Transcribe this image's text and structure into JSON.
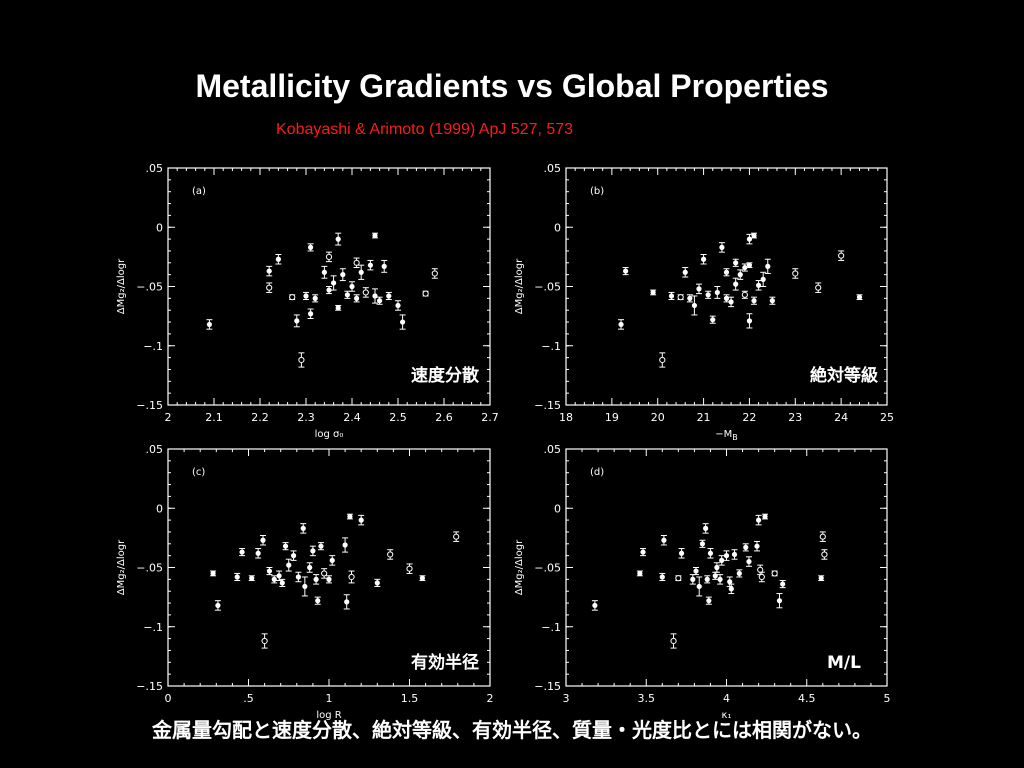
{
  "title": "Metallicity Gradients vs Global Properties",
  "subtitle": "Kobayashi & Arimoto (1999) ApJ 527, 573",
  "caption": "金属量勾配と速度分散、絶対等級、有効半径、質量・光度比とには相関がない。",
  "chart_data": [
    {
      "type": "scatter",
      "panel": "(a)",
      "annotation": "速度分散",
      "xlabel": "log σ₀",
      "ylabel": "ΔMg₂/Δlogr",
      "xlim": [
        2,
        2.7
      ],
      "ylim": [
        -0.15,
        0.05
      ],
      "xticks": [
        "2",
        "2.1",
        "2.2",
        "2.3",
        "2.4",
        "2.5",
        "2.6",
        "2.7"
      ],
      "yticks": [
        ".05",
        "0",
        "−.05",
        "−.1",
        "−.15"
      ],
      "points": [
        {
          "x": 2.09,
          "y": -0.082,
          "err": 0.004,
          "open": false
        },
        {
          "x": 2.22,
          "y": -0.037,
          "err": 0.004,
          "open": false
        },
        {
          "x": 2.22,
          "y": -0.051,
          "err": 0.004,
          "open": true
        },
        {
          "x": 2.24,
          "y": -0.027,
          "err": 0.004,
          "open": false
        },
        {
          "x": 2.27,
          "y": -0.059,
          "err": 0.002,
          "open": true
        },
        {
          "x": 2.28,
          "y": -0.079,
          "err": 0.005,
          "open": false
        },
        {
          "x": 2.29,
          "y": -0.112,
          "err": 0.006,
          "open": true
        },
        {
          "x": 2.3,
          "y": -0.058,
          "err": 0.003,
          "open": false
        },
        {
          "x": 2.31,
          "y": -0.073,
          "err": 0.004,
          "open": false
        },
        {
          "x": 2.31,
          "y": -0.017,
          "err": 0.003,
          "open": false
        },
        {
          "x": 2.32,
          "y": -0.06,
          "err": 0.003,
          "open": false
        },
        {
          "x": 2.34,
          "y": -0.038,
          "err": 0.005,
          "open": false
        },
        {
          "x": 2.35,
          "y": -0.025,
          "err": 0.004,
          "open": true
        },
        {
          "x": 2.35,
          "y": -0.053,
          "err": 0.003,
          "open": false
        },
        {
          "x": 2.36,
          "y": -0.047,
          "err": 0.006,
          "open": false
        },
        {
          "x": 2.37,
          "y": -0.068,
          "err": 0.002,
          "open": false
        },
        {
          "x": 2.37,
          "y": -0.01,
          "err": 0.005,
          "open": false
        },
        {
          "x": 2.38,
          "y": -0.04,
          "err": 0.005,
          "open": false
        },
        {
          "x": 2.39,
          "y": -0.057,
          "err": 0.003,
          "open": false
        },
        {
          "x": 2.4,
          "y": -0.05,
          "err": 0.004,
          "open": false
        },
        {
          "x": 2.41,
          "y": -0.03,
          "err": 0.004,
          "open": true
        },
        {
          "x": 2.41,
          "y": -0.06,
          "err": 0.003,
          "open": false
        },
        {
          "x": 2.42,
          "y": -0.038,
          "err": 0.006,
          "open": false
        },
        {
          "x": 2.43,
          "y": -0.055,
          "err": 0.004,
          "open": true
        },
        {
          "x": 2.44,
          "y": -0.032,
          "err": 0.004,
          "open": false
        },
        {
          "x": 2.45,
          "y": -0.007,
          "err": 0.002,
          "open": false
        },
        {
          "x": 2.45,
          "y": -0.058,
          "err": 0.006,
          "open": false
        },
        {
          "x": 2.46,
          "y": -0.062,
          "err": 0.003,
          "open": false
        },
        {
          "x": 2.47,
          "y": -0.033,
          "err": 0.005,
          "open": false
        },
        {
          "x": 2.48,
          "y": -0.058,
          "err": 0.003,
          "open": false
        },
        {
          "x": 2.5,
          "y": -0.066,
          "err": 0.004,
          "open": false
        },
        {
          "x": 2.51,
          "y": -0.08,
          "err": 0.006,
          "open": false
        },
        {
          "x": 2.56,
          "y": -0.056,
          "err": 0.002,
          "open": true
        },
        {
          "x": 2.58,
          "y": -0.039,
          "err": 0.004,
          "open": true
        }
      ]
    },
    {
      "type": "scatter",
      "panel": "(b)",
      "annotation": "絶対等級",
      "xlabel": "−M_B",
      "ylabel": "ΔMg₂/Δlogr",
      "xlim": [
        18,
        25
      ],
      "ylim": [
        -0.15,
        0.05
      ],
      "xticks": [
        "18",
        "19",
        "20",
        "21",
        "22",
        "23",
        "24",
        "25"
      ],
      "yticks": [
        ".05",
        "0",
        "−.05",
        "−.1",
        "−.15"
      ],
      "points": [
        {
          "x": 19.2,
          "y": -0.082,
          "err": 0.004,
          "open": false
        },
        {
          "x": 19.3,
          "y": -0.037,
          "err": 0.003,
          "open": false
        },
        {
          "x": 19.9,
          "y": -0.055,
          "err": 0.002,
          "open": false
        },
        {
          "x": 20.1,
          "y": -0.112,
          "err": 0.006,
          "open": true
        },
        {
          "x": 20.3,
          "y": -0.058,
          "err": 0.003,
          "open": false
        },
        {
          "x": 20.5,
          "y": -0.059,
          "err": 0.002,
          "open": true
        },
        {
          "x": 20.6,
          "y": -0.038,
          "err": 0.004,
          "open": false
        },
        {
          "x": 20.7,
          "y": -0.06,
          "err": 0.003,
          "open": false
        },
        {
          "x": 20.8,
          "y": -0.066,
          "err": 0.008,
          "open": false
        },
        {
          "x": 20.9,
          "y": -0.052,
          "err": 0.004,
          "open": false
        },
        {
          "x": 21.0,
          "y": -0.027,
          "err": 0.004,
          "open": false
        },
        {
          "x": 21.1,
          "y": -0.057,
          "err": 0.003,
          "open": false
        },
        {
          "x": 21.2,
          "y": -0.078,
          "err": 0.003,
          "open": false
        },
        {
          "x": 21.3,
          "y": -0.055,
          "err": 0.005,
          "open": false
        },
        {
          "x": 21.4,
          "y": -0.017,
          "err": 0.004,
          "open": false
        },
        {
          "x": 21.5,
          "y": -0.038,
          "err": 0.003,
          "open": false
        },
        {
          "x": 21.5,
          "y": -0.06,
          "err": 0.003,
          "open": false
        },
        {
          "x": 21.6,
          "y": -0.063,
          "err": 0.004,
          "open": false
        },
        {
          "x": 21.7,
          "y": -0.048,
          "err": 0.005,
          "open": false
        },
        {
          "x": 21.7,
          "y": -0.03,
          "err": 0.003,
          "open": false
        },
        {
          "x": 21.8,
          "y": -0.04,
          "err": 0.004,
          "open": false
        },
        {
          "x": 21.9,
          "y": -0.057,
          "err": 0.003,
          "open": true
        },
        {
          "x": 21.9,
          "y": -0.034,
          "err": 0.003,
          "open": false
        },
        {
          "x": 22.0,
          "y": -0.032,
          "err": 0.002,
          "open": false
        },
        {
          "x": 22.0,
          "y": -0.01,
          "err": 0.004,
          "open": false
        },
        {
          "x": 22.0,
          "y": -0.079,
          "err": 0.006,
          "open": false
        },
        {
          "x": 22.1,
          "y": -0.062,
          "err": 0.003,
          "open": false
        },
        {
          "x": 22.1,
          "y": -0.007,
          "err": 0.002,
          "open": false
        },
        {
          "x": 22.2,
          "y": -0.049,
          "err": 0.004,
          "open": false
        },
        {
          "x": 22.3,
          "y": -0.044,
          "err": 0.006,
          "open": false
        },
        {
          "x": 22.4,
          "y": -0.033,
          "err": 0.006,
          "open": false
        },
        {
          "x": 22.5,
          "y": -0.062,
          "err": 0.003,
          "open": false
        },
        {
          "x": 23.0,
          "y": -0.039,
          "err": 0.004,
          "open": true
        },
        {
          "x": 23.5,
          "y": -0.051,
          "err": 0.004,
          "open": true
        },
        {
          "x": 24.0,
          "y": -0.024,
          "err": 0.004,
          "open": true
        },
        {
          "x": 24.4,
          "y": -0.059,
          "err": 0.002,
          "open": false
        }
      ]
    },
    {
      "type": "scatter",
      "panel": "(c)",
      "annotation": "有効半径",
      "xlabel": "log R",
      "ylabel": "ΔMg₂/Δlogr",
      "xlim": [
        0,
        2
      ],
      "ylim": [
        -0.15,
        0.05
      ],
      "xticks": [
        "0",
        ".5",
        "1",
        "1.5",
        "2"
      ],
      "yticks": [
        ".05",
        "0",
        "−.05",
        "−.1",
        "−.15"
      ],
      "points": [
        {
          "x": 0.28,
          "y": -0.055,
          "err": 0.002,
          "open": false
        },
        {
          "x": 0.31,
          "y": -0.082,
          "err": 0.004,
          "open": false
        },
        {
          "x": 0.43,
          "y": -0.058,
          "err": 0.003,
          "open": false
        },
        {
          "x": 0.46,
          "y": -0.037,
          "err": 0.003,
          "open": false
        },
        {
          "x": 0.52,
          "y": -0.059,
          "err": 0.002,
          "open": false
        },
        {
          "x": 0.56,
          "y": -0.038,
          "err": 0.004,
          "open": false
        },
        {
          "x": 0.59,
          "y": -0.027,
          "err": 0.004,
          "open": false
        },
        {
          "x": 0.6,
          "y": -0.112,
          "err": 0.006,
          "open": true
        },
        {
          "x": 0.63,
          "y": -0.053,
          "err": 0.003,
          "open": false
        },
        {
          "x": 0.66,
          "y": -0.06,
          "err": 0.003,
          "open": false
        },
        {
          "x": 0.69,
          "y": -0.057,
          "err": 0.004,
          "open": false
        },
        {
          "x": 0.71,
          "y": -0.063,
          "err": 0.003,
          "open": false
        },
        {
          "x": 0.73,
          "y": -0.032,
          "err": 0.003,
          "open": false
        },
        {
          "x": 0.75,
          "y": -0.048,
          "err": 0.005,
          "open": false
        },
        {
          "x": 0.78,
          "y": -0.04,
          "err": 0.004,
          "open": false
        },
        {
          "x": 0.81,
          "y": -0.058,
          "err": 0.004,
          "open": false
        },
        {
          "x": 0.84,
          "y": -0.017,
          "err": 0.004,
          "open": false
        },
        {
          "x": 0.85,
          "y": -0.066,
          "err": 0.008,
          "open": false
        },
        {
          "x": 0.88,
          "y": -0.05,
          "err": 0.004,
          "open": false
        },
        {
          "x": 0.9,
          "y": -0.036,
          "err": 0.004,
          "open": false
        },
        {
          "x": 0.92,
          "y": -0.06,
          "err": 0.004,
          "open": false
        },
        {
          "x": 0.93,
          "y": -0.078,
          "err": 0.003,
          "open": false
        },
        {
          "x": 0.95,
          "y": -0.032,
          "err": 0.003,
          "open": false
        },
        {
          "x": 0.97,
          "y": -0.055,
          "err": 0.004,
          "open": true
        },
        {
          "x": 1.0,
          "y": -0.06,
          "err": 0.003,
          "open": false
        },
        {
          "x": 1.02,
          "y": -0.044,
          "err": 0.004,
          "open": false
        },
        {
          "x": 1.1,
          "y": -0.031,
          "err": 0.006,
          "open": false
        },
        {
          "x": 1.11,
          "y": -0.079,
          "err": 0.006,
          "open": false
        },
        {
          "x": 1.13,
          "y": -0.007,
          "err": 0.002,
          "open": false
        },
        {
          "x": 1.14,
          "y": -0.058,
          "err": 0.005,
          "open": true
        },
        {
          "x": 1.2,
          "y": -0.01,
          "err": 0.004,
          "open": false
        },
        {
          "x": 1.3,
          "y": -0.063,
          "err": 0.003,
          "open": false
        },
        {
          "x": 1.38,
          "y": -0.039,
          "err": 0.004,
          "open": true
        },
        {
          "x": 1.5,
          "y": -0.051,
          "err": 0.004,
          "open": true
        },
        {
          "x": 1.58,
          "y": -0.059,
          "err": 0.002,
          "open": false
        },
        {
          "x": 1.79,
          "y": -0.024,
          "err": 0.004,
          "open": true
        }
      ]
    },
    {
      "type": "scatter",
      "panel": "(d)",
      "annotation": "M/L",
      "xlabel": "κ₁",
      "ylabel": "ΔMg₂/Δlogr",
      "xlim": [
        3,
        5
      ],
      "ylim": [
        -0.15,
        0.05
      ],
      "xticks": [
        "3",
        "3.5",
        "4",
        "4.5",
        "5"
      ],
      "yticks": [
        ".05",
        "0",
        "−.05",
        "−.1",
        "−.15"
      ],
      "points": [
        {
          "x": 3.18,
          "y": -0.082,
          "err": 0.004,
          "open": false
        },
        {
          "x": 3.46,
          "y": -0.055,
          "err": 0.002,
          "open": false
        },
        {
          "x": 3.48,
          "y": -0.037,
          "err": 0.003,
          "open": false
        },
        {
          "x": 3.6,
          "y": -0.058,
          "err": 0.003,
          "open": false
        },
        {
          "x": 3.61,
          "y": -0.027,
          "err": 0.004,
          "open": false
        },
        {
          "x": 3.67,
          "y": -0.112,
          "err": 0.006,
          "open": true
        },
        {
          "x": 3.7,
          "y": -0.059,
          "err": 0.002,
          "open": true
        },
        {
          "x": 3.72,
          "y": -0.038,
          "err": 0.004,
          "open": false
        },
        {
          "x": 3.79,
          "y": -0.06,
          "err": 0.004,
          "open": false
        },
        {
          "x": 3.81,
          "y": -0.053,
          "err": 0.003,
          "open": false
        },
        {
          "x": 3.83,
          "y": -0.066,
          "err": 0.008,
          "open": false
        },
        {
          "x": 3.85,
          "y": -0.03,
          "err": 0.003,
          "open": false
        },
        {
          "x": 3.87,
          "y": -0.017,
          "err": 0.004,
          "open": false
        },
        {
          "x": 3.88,
          "y": -0.06,
          "err": 0.003,
          "open": false
        },
        {
          "x": 3.89,
          "y": -0.078,
          "err": 0.003,
          "open": false
        },
        {
          "x": 3.9,
          "y": -0.038,
          "err": 0.004,
          "open": false
        },
        {
          "x": 3.93,
          "y": -0.057,
          "err": 0.003,
          "open": false
        },
        {
          "x": 3.94,
          "y": -0.05,
          "err": 0.004,
          "open": false
        },
        {
          "x": 3.96,
          "y": -0.06,
          "err": 0.004,
          "open": false
        },
        {
          "x": 3.97,
          "y": -0.044,
          "err": 0.004,
          "open": false
        },
        {
          "x": 4.0,
          "y": -0.04,
          "err": 0.004,
          "open": false
        },
        {
          "x": 4.02,
          "y": -0.062,
          "err": 0.004,
          "open": false
        },
        {
          "x": 4.03,
          "y": -0.068,
          "err": 0.004,
          "open": false
        },
        {
          "x": 4.05,
          "y": -0.039,
          "err": 0.004,
          "open": false
        },
        {
          "x": 4.08,
          "y": -0.055,
          "err": 0.003,
          "open": false
        },
        {
          "x": 4.12,
          "y": -0.033,
          "err": 0.003,
          "open": false
        },
        {
          "x": 4.14,
          "y": -0.045,
          "err": 0.004,
          "open": false
        },
        {
          "x": 4.19,
          "y": -0.032,
          "err": 0.004,
          "open": false
        },
        {
          "x": 4.2,
          "y": -0.01,
          "err": 0.004,
          "open": false
        },
        {
          "x": 4.21,
          "y": -0.052,
          "err": 0.004,
          "open": true
        },
        {
          "x": 4.22,
          "y": -0.058,
          "err": 0.004,
          "open": true
        },
        {
          "x": 4.24,
          "y": -0.007,
          "err": 0.002,
          "open": false
        },
        {
          "x": 4.3,
          "y": -0.055,
          "err": 0.002,
          "open": true
        },
        {
          "x": 4.33,
          "y": -0.078,
          "err": 0.006,
          "open": false
        },
        {
          "x": 4.35,
          "y": -0.064,
          "err": 0.003,
          "open": false
        },
        {
          "x": 4.59,
          "y": -0.059,
          "err": 0.002,
          "open": false
        },
        {
          "x": 4.6,
          "y": -0.024,
          "err": 0.004,
          "open": true
        },
        {
          "x": 4.61,
          "y": -0.039,
          "err": 0.004,
          "open": true
        }
      ]
    }
  ]
}
